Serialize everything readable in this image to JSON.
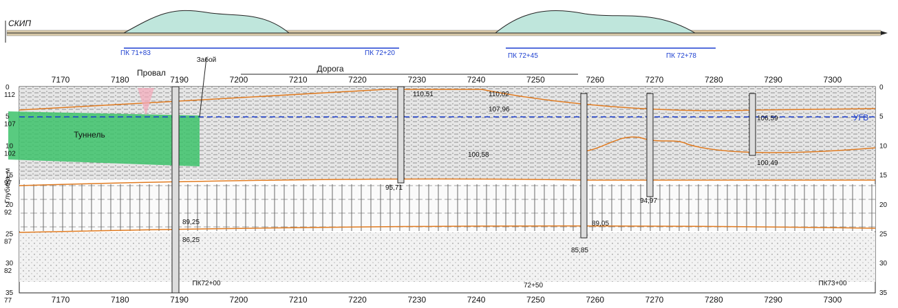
{
  "profile": {
    "label": "СКИП",
    "pickets": [
      "ПК 71+83",
      "ПК 72+20",
      "ПК 72+45",
      "ПК 72+78"
    ]
  },
  "section": {
    "top_axis": [
      7170,
      7180,
      7190,
      7200,
      7210,
      7220,
      7230,
      7240,
      7250,
      7260,
      7270,
      7280,
      7290,
      7300
    ],
    "bottom_axis": [
      7170,
      7180,
      7190,
      7200,
      7210,
      7220,
      7230,
      7240,
      7250,
      7260,
      7270,
      7280,
      7290,
      7300
    ],
    "depth_ticks": [
      0,
      5,
      10,
      15,
      20,
      25,
      30,
      35
    ],
    "elevations": [
      112,
      107,
      102,
      97,
      92,
      87,
      82,
      77
    ],
    "depth_axis_title": "Глубина, м",
    "labels": {
      "collapse": "Провал",
      "face": "Забой",
      "road": "Дорога",
      "tunnel": "Туннель",
      "groundwater": "УГВ"
    },
    "borehole_marks": [
      "110,51",
      "110,02",
      "107,96",
      "106,59",
      "100,58",
      "100,49",
      "95,71",
      "94,97",
      "89,25",
      "86,25",
      "89,05",
      "85,85"
    ],
    "bottom_pickets": [
      "ПК72+00",
      "72+50",
      "ПК73+00"
    ]
  }
}
